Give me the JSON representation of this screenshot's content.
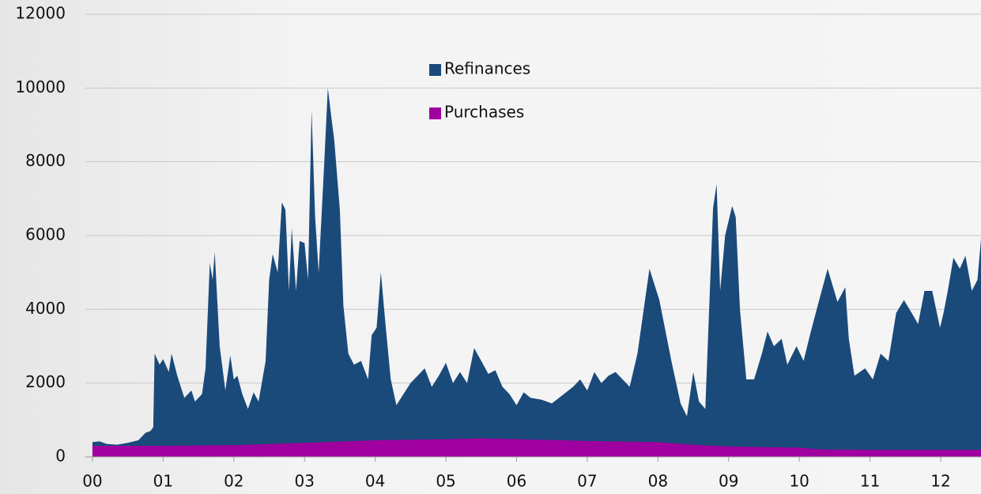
{
  "chart_data": {
    "type": "area",
    "xlim": [
      1999.9,
      2012.57
    ],
    "xticks": [
      {
        "value": 2000,
        "label": "00"
      },
      {
        "value": 2001,
        "label": "01"
      },
      {
        "value": 2002,
        "label": "02"
      },
      {
        "value": 2003,
        "label": "03"
      },
      {
        "value": 2004,
        "label": "04"
      },
      {
        "value": 2005,
        "label": "05"
      },
      {
        "value": 2006,
        "label": "06"
      },
      {
        "value": 2007,
        "label": "07"
      },
      {
        "value": 2008,
        "label": "08"
      },
      {
        "value": 2009,
        "label": "09"
      },
      {
        "value": 2010,
        "label": "10"
      },
      {
        "value": 2011,
        "label": "11"
      },
      {
        "value": 2012,
        "label": "12"
      }
    ],
    "ylim": [
      0,
      12000
    ],
    "yticks": [
      0,
      2000,
      4000,
      6000,
      8000,
      10000,
      12000
    ],
    "grid": true,
    "legend": "top-center",
    "series": [
      {
        "name": "Refinances",
        "color": "#1a4a7a",
        "x": [
          2000.0,
          2000.1,
          2000.2,
          2000.35,
          2000.5,
          2000.65,
          2000.75,
          2000.82,
          2000.86,
          2000.88,
          2000.95,
          2001.0,
          2001.08,
          2001.12,
          2001.2,
          2001.3,
          2001.4,
          2001.45,
          2001.55,
          2001.6,
          2001.66,
          2001.7,
          2001.73,
          2001.8,
          2001.88,
          2001.95,
          2002.0,
          2002.05,
          2002.12,
          2002.2,
          2002.28,
          2002.35,
          2002.45,
          2002.5,
          2002.55,
          2002.62,
          2002.68,
          2002.73,
          2002.78,
          2002.82,
          2002.88,
          2002.93,
          2003.0,
          2003.05,
          2003.1,
          2003.15,
          2003.2,
          2003.28,
          2003.33,
          2003.38,
          2003.42,
          2003.5,
          2003.55,
          2003.62,
          2003.7,
          2003.8,
          2003.9,
          2003.95,
          2004.02,
          2004.08,
          2004.15,
          2004.22,
          2004.3,
          2004.4,
          2004.5,
          2004.6,
          2004.7,
          2004.8,
          2004.9,
          2005.0,
          2005.1,
          2005.2,
          2005.3,
          2005.4,
          2005.5,
          2005.6,
          2005.7,
          2005.8,
          2005.9,
          2006.0,
          2006.1,
          2006.2,
          2006.35,
          2006.5,
          2006.6,
          2006.7,
          2006.8,
          2006.9,
          2007.0,
          2007.1,
          2007.2,
          2007.3,
          2007.4,
          2007.5,
          2007.6,
          2007.71,
          2007.88,
          2008.02,
          2008.19,
          2008.32,
          2008.41,
          2008.5,
          2008.58,
          2008.67,
          2008.72,
          2008.78,
          2008.83,
          2008.88,
          2008.95,
          2009.05,
          2009.1,
          2009.16,
          2009.25,
          2009.36,
          2009.47,
          2009.55,
          2009.64,
          2009.75,
          2009.83,
          2009.96,
          2010.06,
          2010.15,
          2010.26,
          2010.4,
          2010.54,
          2010.65,
          2010.7,
          2010.78,
          2010.93,
          2011.04,
          2011.15,
          2011.26,
          2011.37,
          2011.48,
          2011.59,
          2011.68,
          2011.77,
          2011.88,
          2011.99,
          2012.04,
          2012.1,
          2012.18,
          2012.27,
          2012.35,
          2012.44,
          2012.52,
          2012.57
        ],
        "values": [
          400,
          420,
          350,
          330,
          380,
          450,
          650,
          700,
          800,
          2800,
          2500,
          2650,
          2300,
          2800,
          2200,
          1600,
          1800,
          1500,
          1700,
          2400,
          5250,
          4800,
          5550,
          3000,
          1800,
          2750,
          2100,
          2200,
          1700,
          1300,
          1750,
          1500,
          2600,
          4800,
          5500,
          5000,
          6900,
          6700,
          4500,
          6200,
          4500,
          5850,
          5800,
          4800,
          9400,
          6500,
          5000,
          8000,
          10000,
          9200,
          8600,
          6700,
          4100,
          2800,
          2500,
          2600,
          2100,
          3300,
          3500,
          5000,
          3500,
          2100,
          1400,
          1700,
          2000,
          2200,
          2400,
          1900,
          2200,
          2550,
          2000,
          2300,
          2000,
          2950,
          2600,
          2250,
          2350,
          1900,
          1700,
          1400,
          1750,
          1600,
          1550,
          1450,
          1600,
          1750,
          1900,
          2100,
          1800,
          2300,
          2000,
          2200,
          2300,
          2100,
          1900,
          2800,
          5100,
          4250,
          2600,
          1450,
          1100,
          2300,
          1500,
          1300,
          3800,
          6750,
          7400,
          4500,
          6000,
          6800,
          6500,
          4000,
          2100,
          2100,
          2800,
          3400,
          3000,
          3200,
          2500,
          3000,
          2600,
          3300,
          4100,
          5100,
          4200,
          4600,
          3200,
          2200,
          2400,
          2100,
          2800,
          2600,
          3900,
          4250,
          3900,
          3600,
          4500,
          4500,
          3500,
          3900,
          4500,
          5400,
          5100,
          5450,
          4500,
          4800,
          5900
        ]
      },
      {
        "name": "Purchases",
        "color": "#a000a0",
        "x": [
          2000.0,
          2001.0,
          2002.0,
          2003.0,
          2004.0,
          2005.0,
          2005.5,
          2006.0,
          2007.0,
          2008.0,
          2008.5,
          2009.0,
          2010.0,
          2010.3,
          2011.0,
          2012.0,
          2012.57
        ],
        "values": [
          300,
          300,
          320,
          380,
          450,
          480,
          500,
          480,
          430,
          400,
          330,
          280,
          250,
          200,
          190,
          190,
          190
        ]
      }
    ]
  }
}
